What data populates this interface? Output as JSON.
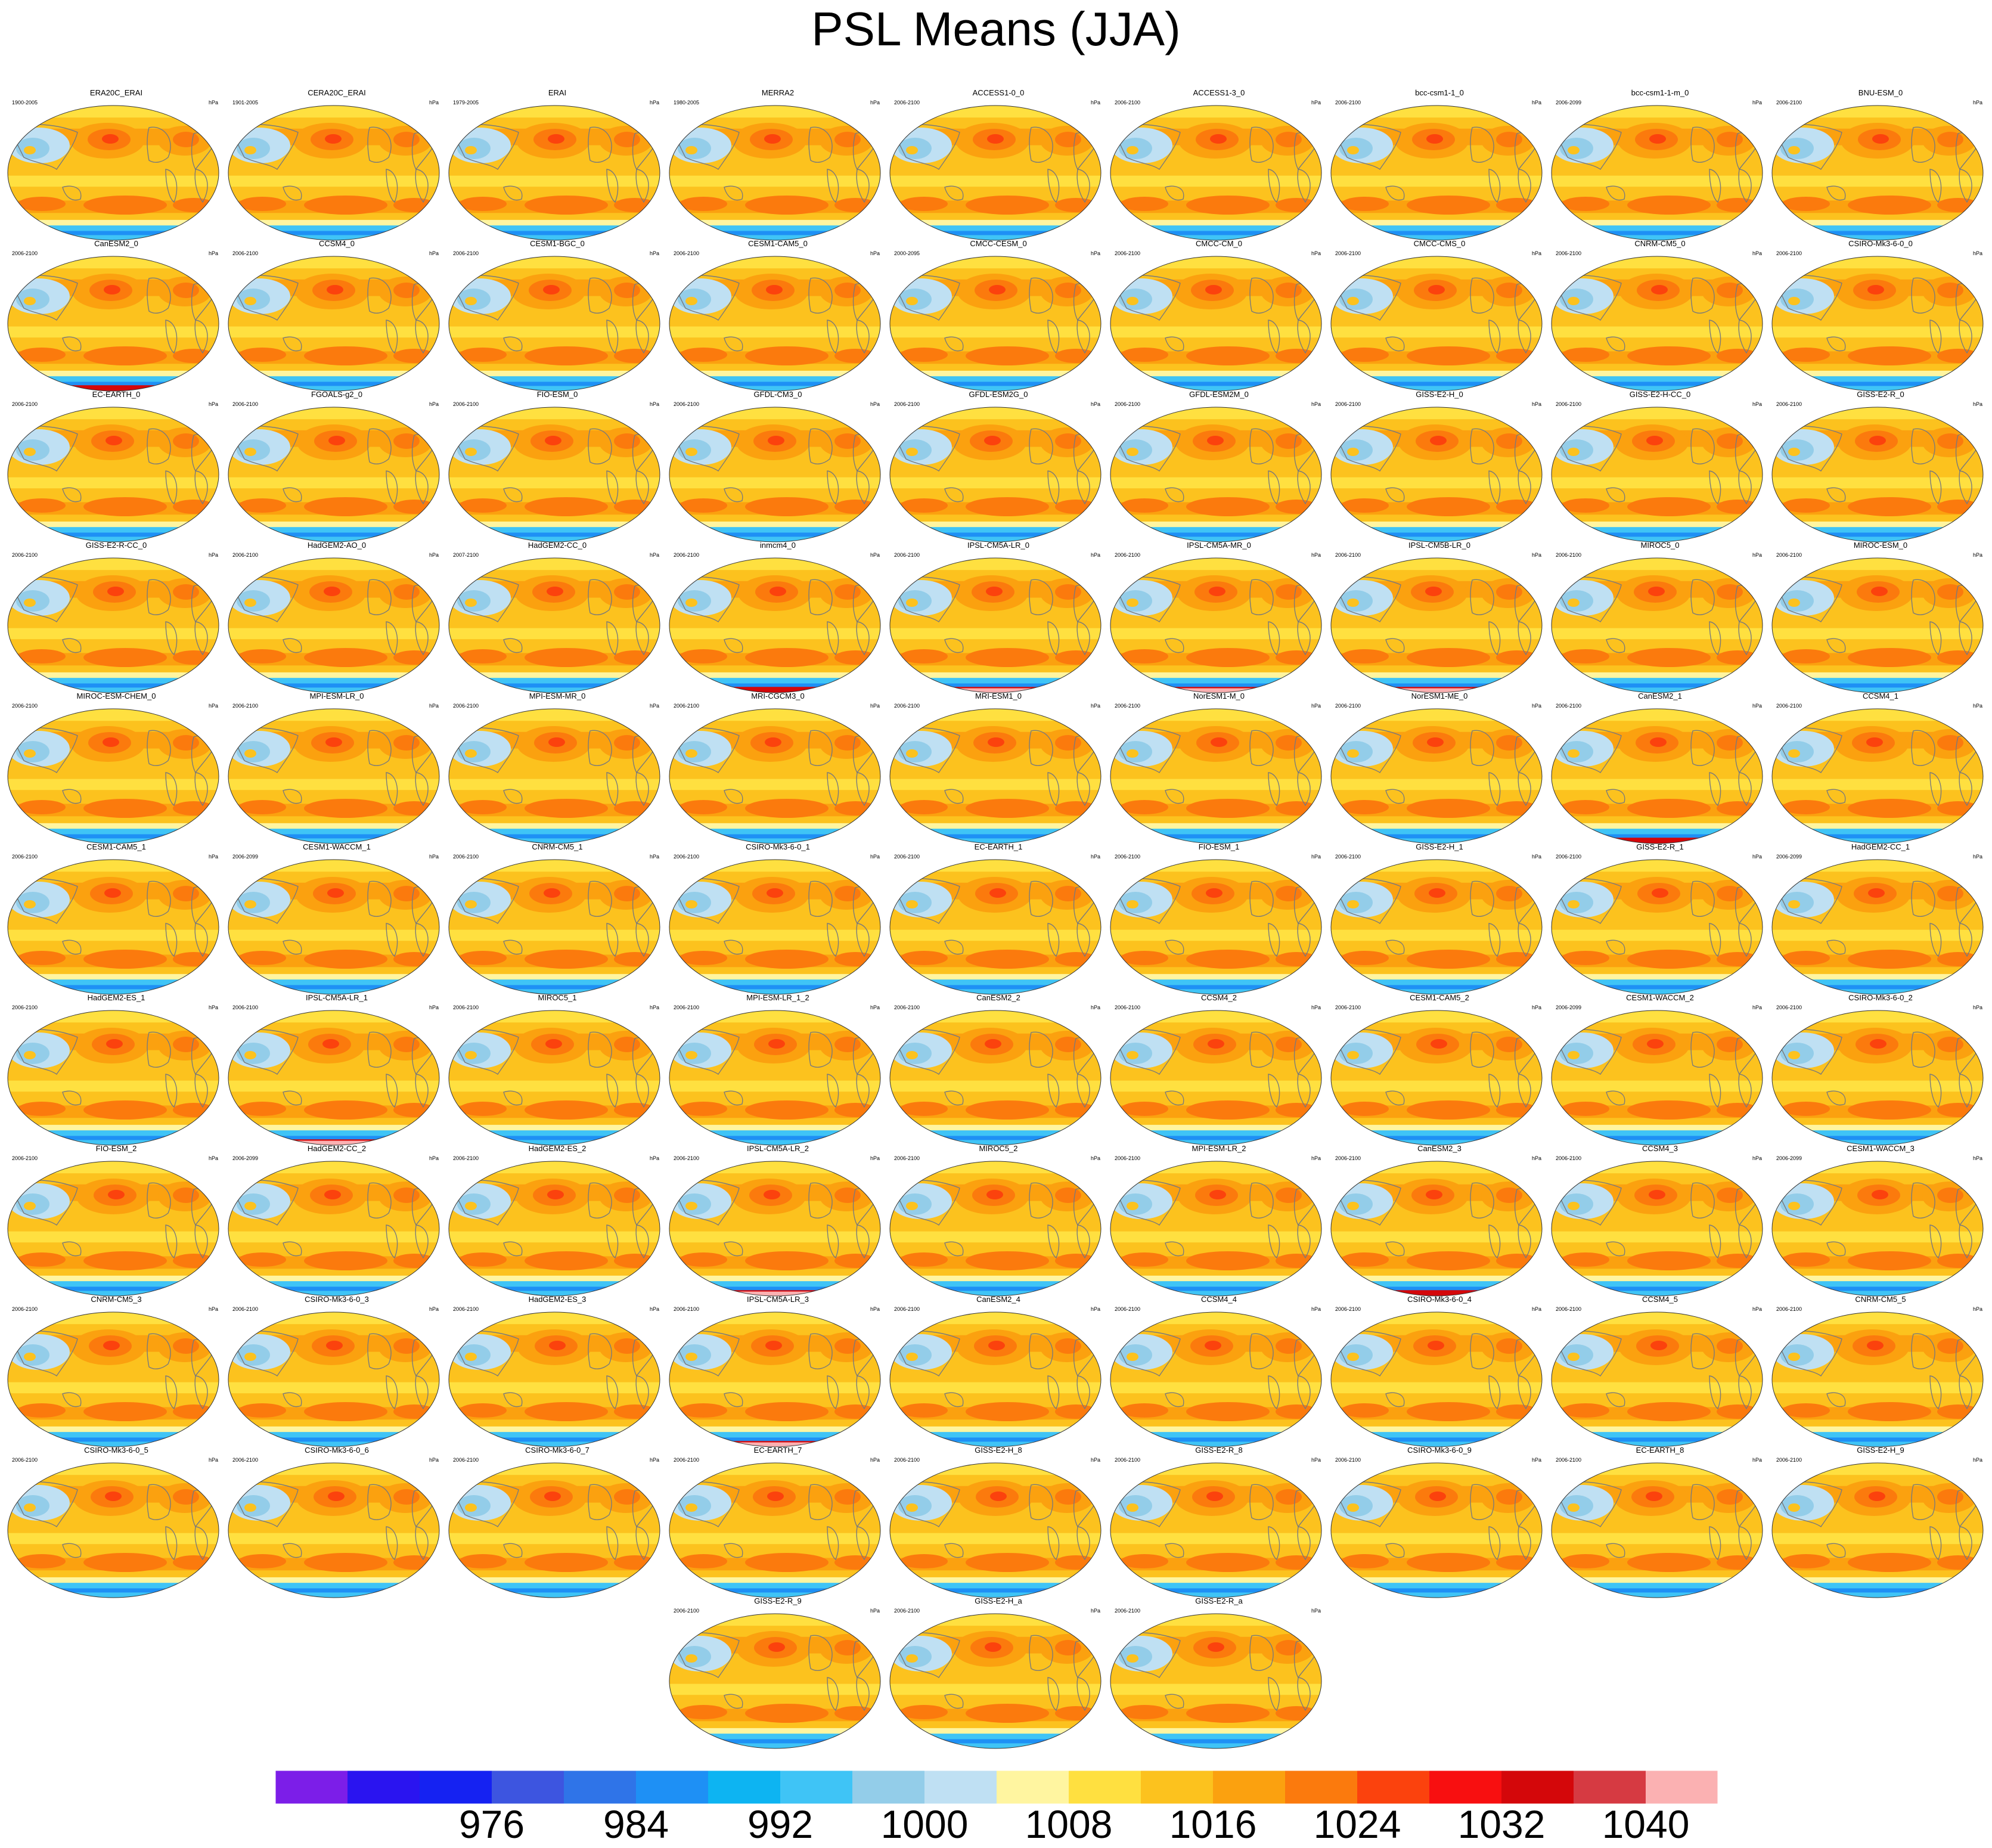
{
  "title": "PSL Means (JJA)",
  "unit": "hPa",
  "chart_data": {
    "type": "heatmap",
    "title": "PSL Means (JJA)",
    "unit": "hPa",
    "colorbar": {
      "colors": [
        "#7c1ee8",
        "#2a14f0",
        "#1522f2",
        "#3d55e0",
        "#2f74e8",
        "#1e90f5",
        "#0db4f2",
        "#3fc4f6",
        "#93cde9",
        "#bfe0f3",
        "#fff5a0",
        "#ffe040",
        "#fcc21e",
        "#fba10f",
        "#fb7a0d",
        "#fb420d",
        "#f80f10",
        "#d4070a",
        "#d63a42",
        "#fbb1b2"
      ],
      "tick_labels": [
        "976",
        "984",
        "992",
        "1000",
        "1008",
        "1016",
        "1024",
        "1032",
        "1040"
      ],
      "tick_positions": [
        3,
        5,
        7,
        9,
        11,
        13,
        15,
        17,
        19
      ]
    },
    "panels": [
      {
        "name": "ERA20C_ERAI",
        "years": "1900-2005",
        "unit": "hPa"
      },
      {
        "name": "CERA20C_ERAI",
        "years": "1901-2005",
        "unit": "hPa"
      },
      {
        "name": "ERAI",
        "years": "1979-2005",
        "unit": "hPa"
      },
      {
        "name": "MERRA2",
        "years": "1980-2005",
        "unit": "hPa"
      },
      {
        "name": "ACCESS1-0_0",
        "years": "2006-2100",
        "unit": "hPa"
      },
      {
        "name": "ACCESS1-3_0",
        "years": "2006-2100",
        "unit": "hPa"
      },
      {
        "name": "bcc-csm1-1_0",
        "years": "2006-2100",
        "unit": "hPa"
      },
      {
        "name": "bcc-csm1-1-m_0",
        "years": "2006-2099",
        "unit": "hPa"
      },
      {
        "name": "BNU-ESM_0",
        "years": "2006-2100",
        "unit": "hPa"
      },
      {
        "name": "CanESM2_0",
        "years": "2006-2100",
        "unit": "hPa"
      },
      {
        "name": "CCSM4_0",
        "years": "2006-2100",
        "unit": "hPa"
      },
      {
        "name": "CESM1-BGC_0",
        "years": "2006-2100",
        "unit": "hPa"
      },
      {
        "name": "CESM1-CAM5_0",
        "years": "2006-2100",
        "unit": "hPa"
      },
      {
        "name": "CMCC-CESM_0",
        "years": "2000-2095",
        "unit": "hPa"
      },
      {
        "name": "CMCC-CM_0",
        "years": "2006-2100",
        "unit": "hPa"
      },
      {
        "name": "CMCC-CMS_0",
        "years": "2006-2100",
        "unit": "hPa"
      },
      {
        "name": "CNRM-CM5_0",
        "years": "2006-2100",
        "unit": "hPa"
      },
      {
        "name": "CSIRO-Mk3-6-0_0",
        "years": "2006-2100",
        "unit": "hPa"
      },
      {
        "name": "EC-EARTH_0",
        "years": "2006-2100",
        "unit": "hPa"
      },
      {
        "name": "FGOALS-g2_0",
        "years": "2006-2100",
        "unit": "hPa"
      },
      {
        "name": "FIO-ESM_0",
        "years": "2006-2100",
        "unit": "hPa"
      },
      {
        "name": "GFDL-CM3_0",
        "years": "2006-2100",
        "unit": "hPa"
      },
      {
        "name": "GFDL-ESM2G_0",
        "years": "2006-2100",
        "unit": "hPa"
      },
      {
        "name": "GFDL-ESM2M_0",
        "years": "2006-2100",
        "unit": "hPa"
      },
      {
        "name": "GISS-E2-H_0",
        "years": "2006-2100",
        "unit": "hPa"
      },
      {
        "name": "GISS-E2-H-CC_0",
        "years": "2006-2100",
        "unit": "hPa"
      },
      {
        "name": "GISS-E2-R_0",
        "years": "2006-2100",
        "unit": "hPa"
      },
      {
        "name": "GISS-E2-R-CC_0",
        "years": "2006-2100",
        "unit": "hPa"
      },
      {
        "name": "HadGEM2-AO_0",
        "years": "2006-2100",
        "unit": "hPa"
      },
      {
        "name": "HadGEM2-CC_0",
        "years": "2007-2100",
        "unit": "hPa"
      },
      {
        "name": "inmcm4_0",
        "years": "2006-2100",
        "unit": "hPa"
      },
      {
        "name": "IPSL-CM5A-LR_0",
        "years": "2006-2100",
        "unit": "hPa"
      },
      {
        "name": "IPSL-CM5A-MR_0",
        "years": "2006-2100",
        "unit": "hPa"
      },
      {
        "name": "IPSL-CM5B-LR_0",
        "years": "2006-2100",
        "unit": "hPa"
      },
      {
        "name": "MIROC5_0",
        "years": "2006-2100",
        "unit": "hPa"
      },
      {
        "name": "MIROC-ESM_0",
        "years": "2006-2100",
        "unit": "hPa"
      },
      {
        "name": "MIROC-ESM-CHEM_0",
        "years": "2006-2100",
        "unit": "hPa"
      },
      {
        "name": "MPI-ESM-LR_0",
        "years": "2006-2100",
        "unit": "hPa"
      },
      {
        "name": "MPI-ESM-MR_0",
        "years": "2006-2100",
        "unit": "hPa"
      },
      {
        "name": "MRI-CGCM3_0",
        "years": "2006-2100",
        "unit": "hPa"
      },
      {
        "name": "MRI-ESM1_0",
        "years": "2006-2100",
        "unit": "hPa"
      },
      {
        "name": "NorESM1-M_0",
        "years": "2006-2100",
        "unit": "hPa"
      },
      {
        "name": "NorESM1-ME_0",
        "years": "2006-2100",
        "unit": "hPa"
      },
      {
        "name": "CanESM2_1",
        "years": "2006-2100",
        "unit": "hPa"
      },
      {
        "name": "CCSM4_1",
        "years": "2006-2100",
        "unit": "hPa"
      },
      {
        "name": "CESM1-CAM5_1",
        "years": "2006-2100",
        "unit": "hPa"
      },
      {
        "name": "CESM1-WACCM_1",
        "years": "2006-2099",
        "unit": "hPa"
      },
      {
        "name": "CNRM-CM5_1",
        "years": "2006-2100",
        "unit": "hPa"
      },
      {
        "name": "CSIRO-Mk3-6-0_1",
        "years": "2006-2100",
        "unit": "hPa"
      },
      {
        "name": "EC-EARTH_1",
        "years": "2006-2100",
        "unit": "hPa"
      },
      {
        "name": "FIO-ESM_1",
        "years": "2006-2100",
        "unit": "hPa"
      },
      {
        "name": "GISS-E2-H_1",
        "years": "2006-2100",
        "unit": "hPa"
      },
      {
        "name": "GISS-E2-R_1",
        "years": "2006-2100",
        "unit": "hPa"
      },
      {
        "name": "HadGEM2-CC_1",
        "years": "2006-2099",
        "unit": "hPa"
      },
      {
        "name": "HadGEM2-ES_1",
        "years": "2006-2100",
        "unit": "hPa"
      },
      {
        "name": "IPSL-CM5A-LR_1",
        "years": "2006-2100",
        "unit": "hPa"
      },
      {
        "name": "MIROC5_1",
        "years": "2006-2100",
        "unit": "hPa"
      },
      {
        "name": "MPI-ESM-LR_1_2",
        "years": "2006-2100",
        "unit": "hPa"
      },
      {
        "name": "CanESM2_2",
        "years": "2006-2100",
        "unit": "hPa"
      },
      {
        "name": "CCSM4_2",
        "years": "2006-2100",
        "unit": "hPa"
      },
      {
        "name": "CESM1-CAM5_2",
        "years": "2006-2100",
        "unit": "hPa"
      },
      {
        "name": "CESM1-WACCM_2",
        "years": "2006-2099",
        "unit": "hPa"
      },
      {
        "name": "CSIRO-Mk3-6-0_2",
        "years": "2006-2100",
        "unit": "hPa"
      },
      {
        "name": "FIO-ESM_2",
        "years": "2006-2100",
        "unit": "hPa"
      },
      {
        "name": "HadGEM2-CC_2",
        "years": "2006-2099",
        "unit": "hPa"
      },
      {
        "name": "HadGEM2-ES_2",
        "years": "2006-2100",
        "unit": "hPa"
      },
      {
        "name": "IPSL-CM5A-LR_2",
        "years": "2006-2100",
        "unit": "hPa"
      },
      {
        "name": "MIROC5_2",
        "years": "2006-2100",
        "unit": "hPa"
      },
      {
        "name": "MPI-ESM-LR_2",
        "years": "2006-2100",
        "unit": "hPa"
      },
      {
        "name": "CanESM2_3",
        "years": "2006-2100",
        "unit": "hPa"
      },
      {
        "name": "CCSM4_3",
        "years": "2006-2100",
        "unit": "hPa"
      },
      {
        "name": "CESM1-WACCM_3",
        "years": "2006-2099",
        "unit": "hPa"
      },
      {
        "name": "CNRM-CM5_3",
        "years": "2006-2100",
        "unit": "hPa"
      },
      {
        "name": "CSIRO-Mk3-6-0_3",
        "years": "2006-2100",
        "unit": "hPa"
      },
      {
        "name": "HadGEM2-ES_3",
        "years": "2006-2100",
        "unit": "hPa"
      },
      {
        "name": "IPSL-CM5A-LR_3",
        "years": "2006-2100",
        "unit": "hPa"
      },
      {
        "name": "CanESM2_4",
        "years": "2006-2100",
        "unit": "hPa"
      },
      {
        "name": "CCSM4_4",
        "years": "2006-2100",
        "unit": "hPa"
      },
      {
        "name": "CSIRO-Mk3-6-0_4",
        "years": "2006-2100",
        "unit": "hPa"
      },
      {
        "name": "CCSM4_5",
        "years": "2006-2100",
        "unit": "hPa"
      },
      {
        "name": "CNRM-CM5_5",
        "years": "2006-2100",
        "unit": "hPa"
      },
      {
        "name": "CSIRO-Mk3-6-0_5",
        "years": "2006-2100",
        "unit": "hPa"
      },
      {
        "name": "CSIRO-Mk3-6-0_6",
        "years": "2006-2100",
        "unit": "hPa"
      },
      {
        "name": "CSIRO-Mk3-6-0_7",
        "years": "2006-2100",
        "unit": "hPa"
      },
      {
        "name": "EC-EARTH_7",
        "years": "2006-2100",
        "unit": "hPa"
      },
      {
        "name": "GISS-E2-H_8",
        "years": "2006-2100",
        "unit": "hPa"
      },
      {
        "name": "GISS-E2-R_8",
        "years": "2006-2100",
        "unit": "hPa"
      },
      {
        "name": "CSIRO-Mk3-6-0_9",
        "years": "2006-2100",
        "unit": "hPa"
      },
      {
        "name": "EC-EARTH_8",
        "years": "2006-2100",
        "unit": "hPa"
      },
      {
        "name": "GISS-E2-H_9",
        "years": "2006-2100",
        "unit": "hPa"
      },
      {
        "name": "GISS-E2-R_9",
        "years": "2006-2100",
        "unit": "hPa"
      },
      {
        "name": "GISS-E2-H_a",
        "years": "2006-2100",
        "unit": "hPa"
      },
      {
        "name": "GISS-E2-R_a",
        "years": "2006-2100",
        "unit": "hPa"
      }
    ]
  }
}
